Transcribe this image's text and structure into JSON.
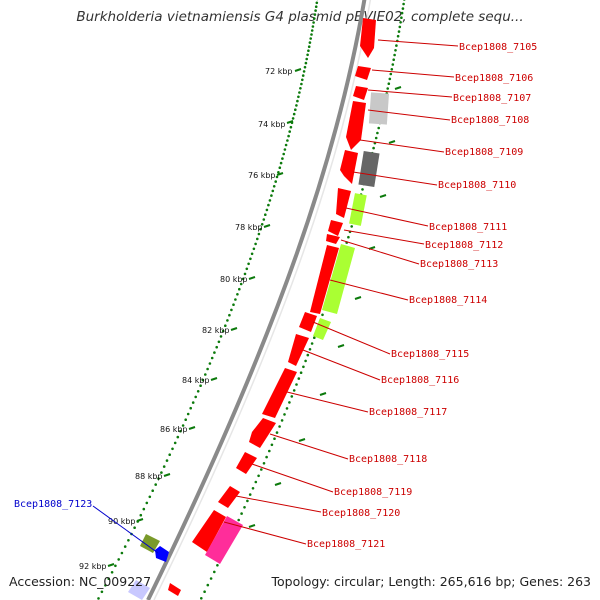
{
  "title": "Burkholderia vietnamiensis G4 plasmid pBVIE02, complete sequ...",
  "footer": {
    "accession": "Accession: NC_009227",
    "topology": "Topology: circular; Length: 265,616 bp; Genes: 263"
  },
  "colors": {
    "backbone": "#8a8a8a",
    "tick_dots": "#0c7a0c",
    "label_red": "#cc0000",
    "label_blue": "#0000cc",
    "gene_red": "#ff0000",
    "gene_lime": "#aaff33",
    "gene_gray_light": "#c8c8c8",
    "gene_gray_dark": "#666666",
    "gene_pink": "#ff2d9a",
    "gene_olive": "#7a9a2a",
    "gene_blue": "#0000ff",
    "gene_lavender": "#c8c8ff"
  },
  "ruler": {
    "unit": "kbp",
    "labels": [
      "72 kbp",
      "74 kbp",
      "76 kbp",
      "78 kbp",
      "80 kbp",
      "82 kbp",
      "84 kbp",
      "86 kbp",
      "88 kbp",
      "90 kbp",
      "92 kbp"
    ]
  },
  "genes": [
    {
      "label": "Bcep1808_7105",
      "color": "red"
    },
    {
      "label": "Bcep1808_7106",
      "color": "red"
    },
    {
      "label": "Bcep1808_7107",
      "color": "red"
    },
    {
      "label": "Bcep1808_7108",
      "color": "red"
    },
    {
      "label": "Bcep1808_7109",
      "color": "red"
    },
    {
      "label": "Bcep1808_7110",
      "color": "red"
    },
    {
      "label": "Bcep1808_7111",
      "color": "red"
    },
    {
      "label": "Bcep1808_7112",
      "color": "red"
    },
    {
      "label": "Bcep1808_7113",
      "color": "red"
    },
    {
      "label": "Bcep1808_7114",
      "color": "red"
    },
    {
      "label": "Bcep1808_7115",
      "color": "red"
    },
    {
      "label": "Bcep1808_7116",
      "color": "red"
    },
    {
      "label": "Bcep1808_7117",
      "color": "red"
    },
    {
      "label": "Bcep1808_7118",
      "color": "red"
    },
    {
      "label": "Bcep1808_7119",
      "color": "red"
    },
    {
      "label": "Bcep1808_7120",
      "color": "red"
    },
    {
      "label": "Bcep1808_7121",
      "color": "red"
    },
    {
      "label": "Bcep1808_7123",
      "color": "blue"
    }
  ]
}
